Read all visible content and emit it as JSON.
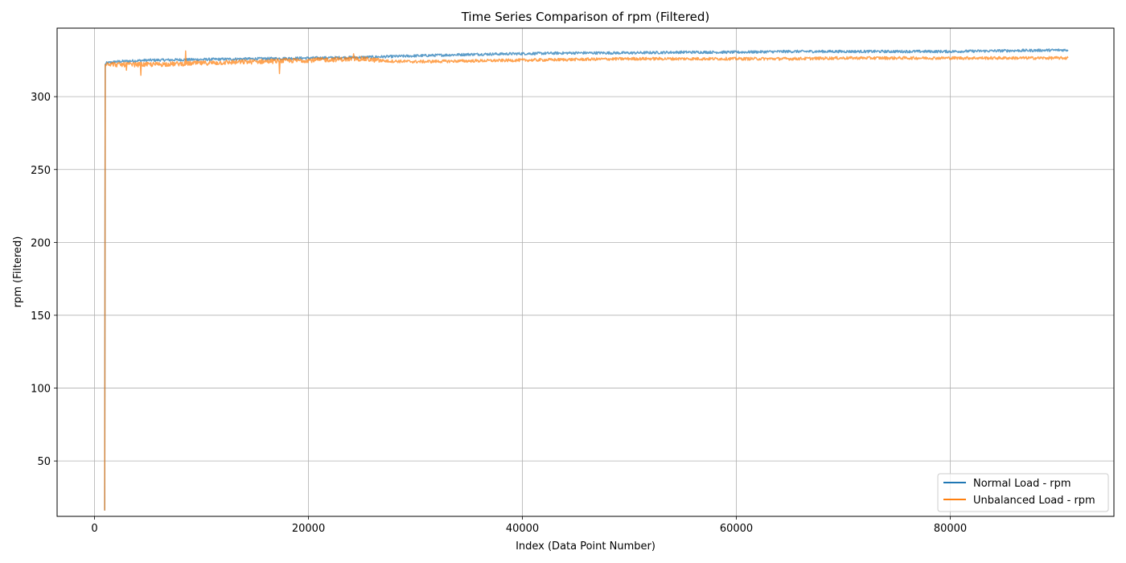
{
  "chart_data": {
    "type": "line",
    "title": "Time Series Comparison of rpm (Filtered)",
    "xlabel": "Index (Data Point Number)",
    "ylabel": "rpm (Filtered)",
    "xlim": [
      -3500,
      95300
    ],
    "ylim": [
      12,
      347
    ],
    "xticks": [
      0,
      20000,
      40000,
      60000,
      80000
    ],
    "yticks": [
      50,
      100,
      150,
      200,
      250,
      300
    ],
    "grid": true,
    "legend_position": "lower-right",
    "series": [
      {
        "name": "Normal Load - rpm",
        "color": "#1f77b4",
        "x": [
          950,
          1000,
          1100,
          2000,
          5000,
          10000,
          15000,
          20000,
          25000,
          30000,
          35000,
          40000,
          45000,
          50000,
          55000,
          60000,
          65000,
          70000,
          75000,
          80000,
          85000,
          91000
        ],
        "values": [
          16,
          322,
          323,
          324,
          325,
          325.5,
          326,
          326.5,
          327,
          328,
          329,
          329.5,
          330,
          330,
          330.5,
          330.5,
          331,
          331,
          331,
          331,
          331.5,
          332
        ]
      },
      {
        "name": "Unbalanced Load - rpm",
        "color": "#ff7f0e",
        "x": [
          950,
          1000,
          1100,
          2000,
          5000,
          10000,
          15000,
          20000,
          25000,
          27000,
          30000,
          35000,
          40000,
          45000,
          50000,
          55000,
          60000,
          65000,
          70000,
          75000,
          80000,
          85000,
          91000
        ],
        "values": [
          16,
          322,
          323,
          322,
          322,
          323,
          324,
          325,
          326,
          324.5,
          324,
          324.5,
          325,
          325.5,
          326,
          326,
          326,
          326,
          326.5,
          326.5,
          326.5,
          326.5,
          326.5
        ]
      }
    ]
  }
}
